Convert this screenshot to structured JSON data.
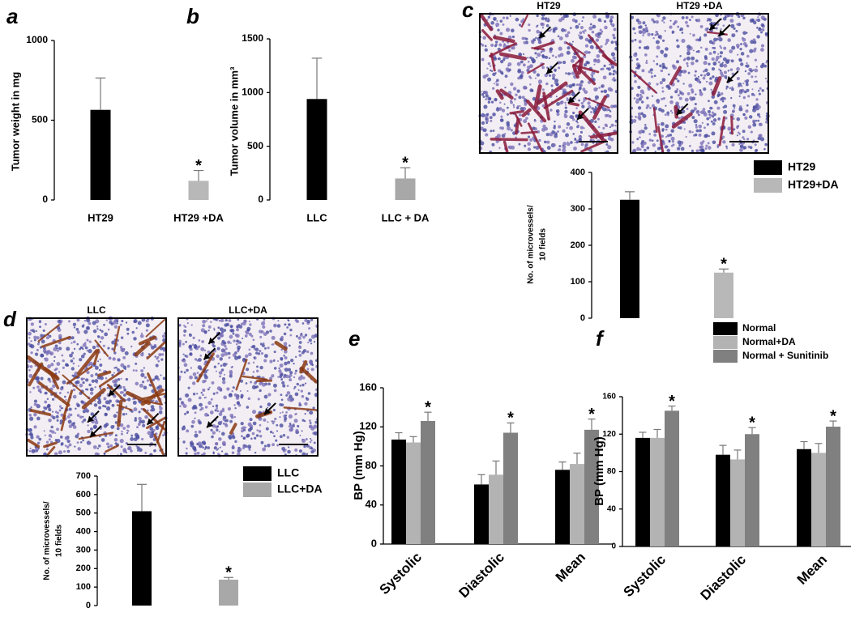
{
  "chart_data": [
    {
      "type": "bar",
      "panel": "a",
      "ylabel": [
        "Tumor weight in mg"
      ],
      "categories": [
        "HT29",
        "HT29 +DA"
      ],
      "values": [
        565,
        120
      ],
      "errors": [
        200,
        65
      ],
      "colors": [
        "#000000",
        "#b8b8b8"
      ],
      "ylim": [
        0,
        1000
      ],
      "yticks": [
        0,
        500,
        1000
      ],
      "annotations": [
        {
          "text": "*",
          "index": 1
        }
      ]
    },
    {
      "type": "bar",
      "panel": "b",
      "ylabel": [
        "Tumor volume in mm³"
      ],
      "categories": [
        "LLC",
        "LLC + DA"
      ],
      "values": [
        940,
        200
      ],
      "errors": [
        380,
        100
      ],
      "colors": [
        "#000000",
        "#a8a8a8"
      ],
      "ylim": [
        0,
        1500
      ],
      "yticks": [
        0,
        500,
        1000,
        1500
      ],
      "annotations": [
        {
          "text": "*",
          "index": 1
        }
      ]
    },
    {
      "type": "bar",
      "panel": "c",
      "images": [
        {
          "label": "HT29"
        },
        {
          "label": "HT29 +DA"
        }
      ],
      "ylabel": [
        "No. of microvessels/",
        "10 fields"
      ],
      "categories": [
        null,
        null
      ],
      "legend": [
        "HT29",
        "HT29+DA"
      ],
      "values": [
        325,
        125
      ],
      "errors": [
        22,
        10
      ],
      "colors": [
        "#000000",
        "#b8b8b8"
      ],
      "ylim": [
        0,
        400
      ],
      "yticks": [
        0,
        100,
        200,
        300,
        400
      ],
      "annotations": [
        {
          "text": "*",
          "index": 1
        }
      ]
    },
    {
      "type": "bar",
      "panel": "d",
      "images": [
        {
          "label": "LLC"
        },
        {
          "label": "LLC+DA"
        }
      ],
      "ylabel": [
        "No. of microvessels/",
        "10 fields"
      ],
      "categories": [
        null,
        null
      ],
      "legend": [
        "LLC",
        "LLC+DA"
      ],
      "values": [
        510,
        140
      ],
      "errors": [
        145,
        12
      ],
      "colors": [
        "#000000",
        "#a8a8a8"
      ],
      "ylim": [
        0,
        700
      ],
      "yticks": [
        0,
        100,
        200,
        300,
        400,
        500,
        600,
        700
      ],
      "annotations": [
        {
          "text": "*",
          "index": 1
        }
      ]
    },
    {
      "type": "grouped_bar",
      "panel": "e",
      "ylabel": [
        "BP (mm Hg)"
      ],
      "categories": [
        "Systolic",
        "Diastolic",
        "Mean"
      ],
      "series": [
        {
          "color": "#000000",
          "values": [
            107,
            61,
            76
          ],
          "errors": [
            7,
            10,
            8
          ]
        },
        {
          "color": "#b3b3b3",
          "values": [
            104,
            71,
            82
          ],
          "errors": [
            6,
            14,
            11
          ]
        },
        {
          "color": "#808080",
          "values": [
            126,
            114,
            117
          ],
          "errors": [
            9,
            10,
            11
          ]
        }
      ],
      "ylim": [
        0,
        160
      ],
      "yticks": [
        0,
        40,
        80,
        120,
        160
      ],
      "annotations": [
        {
          "text": "*",
          "series": 2,
          "index": 0
        },
        {
          "text": "*",
          "series": 2,
          "index": 1
        },
        {
          "text": "*",
          "series": 2,
          "index": 2
        }
      ]
    },
    {
      "type": "grouped_bar",
      "panel": "f",
      "ylabel": [
        "BP (mm Hg)"
      ],
      "categories": [
        "Systolic",
        "Diastolic",
        "Mean"
      ],
      "series": [
        {
          "name": "Normal",
          "color": "#000000",
          "values": [
            116,
            98,
            104
          ],
          "errors": [
            6,
            10,
            8
          ]
        },
        {
          "name": "Normal+DA",
          "color": "#b3b3b3",
          "values": [
            116,
            93,
            100
          ],
          "errors": [
            9,
            10,
            10
          ]
        },
        {
          "name": "Normal + Sunitinib",
          "color": "#808080",
          "values": [
            145,
            120,
            128
          ],
          "errors": [
            5,
            7,
            6
          ]
        }
      ],
      "ylim": [
        0,
        160
      ],
      "yticks": [
        0,
        40,
        80,
        120,
        160
      ],
      "annotations": [
        {
          "text": "*",
          "series": 2,
          "index": 0
        },
        {
          "text": "*",
          "series": 2,
          "index": 1
        },
        {
          "text": "*",
          "series": 2,
          "index": 2
        }
      ]
    }
  ]
}
